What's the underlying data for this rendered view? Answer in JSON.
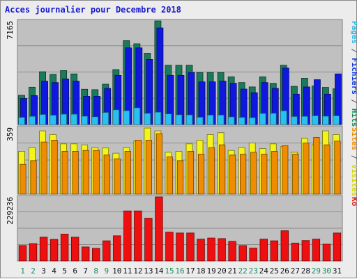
{
  "title": "Acces journalier pour Decembre 2018",
  "chart_data": {
    "type": "bar",
    "categories": [
      "1",
      "2",
      "3",
      "4",
      "5",
      "6",
      "7",
      "8",
      "9",
      "10",
      "11",
      "12",
      "13",
      "14",
      "15",
      "16",
      "17",
      "18",
      "19",
      "20",
      "21",
      "22",
      "23",
      "24",
      "25",
      "26",
      "27",
      "28",
      "29",
      "30",
      "31"
    ],
    "weekend_days": [
      "1",
      "2",
      "8",
      "9",
      "15",
      "16",
      "22",
      "23",
      "29",
      "30"
    ],
    "panels": [
      {
        "id": "hits-panel",
        "max_label": "7165",
        "ymax": 7165,
        "right_labels": [
          {
            "text": "Pages",
            "color": "#28b8e8"
          },
          {
            "text": " / ",
            "color": "#555555"
          },
          {
            "text": "Fichiers",
            "color": "#1038e0"
          },
          {
            "text": " / ",
            "color": "#555555"
          },
          {
            "text": "Hits",
            "color": "#1a8a5a"
          }
        ],
        "series": [
          {
            "name": "Hits",
            "color": "#1a7a5a",
            "values": [
              2020,
              2580,
              3650,
              3470,
              3730,
              3500,
              2440,
              2410,
              2790,
              3800,
              5800,
              5580,
              4930,
              7165,
              4100,
              4100,
              4100,
              3600,
              3600,
              3600,
              3300,
              2900,
              2600,
              3300,
              2850,
              4100,
              2640,
              3200,
              2670,
              2570,
              2470
            ]
          },
          {
            "name": "Fichiers",
            "color": "#1018e0",
            "values": [
              1800,
              2000,
              3000,
              2900,
              3150,
              3000,
              1950,
              1950,
              2500,
              3400,
              5300,
              5300,
              4500,
              6680,
              3400,
              3400,
              3600,
              2950,
              2950,
              3000,
              2850,
              2450,
              2200,
              2900,
              2500,
              3900,
              2100,
              2600,
              3100,
              2100,
              3500
            ]
          },
          {
            "name": "Pages",
            "color": "#28c0f0",
            "values": [
              500,
              570,
              700,
              650,
              720,
              720,
              580,
              540,
              840,
              1020,
              960,
              1160,
              780,
              860,
              740,
              680,
              670,
              510,
              660,
              660,
              530,
              500,
              480,
              770,
              780,
              950,
              560,
              570,
              610,
              580,
              610
            ]
          }
        ]
      },
      {
        "id": "visits-panel",
        "max_label": "359",
        "ymax": 359,
        "right_labels": [
          {
            "text": "Sites",
            "color": "#f08c00"
          },
          {
            "text": " / ",
            "color": "#555555"
          },
          {
            "text": "Visites",
            "color": "#d8d800"
          }
        ],
        "series": [
          {
            "name": "Visites",
            "color": "#f4f41a",
            "values": [
              230,
              250,
              340,
              320,
              270,
              270,
              265,
              250,
              248,
              220,
              250,
              285,
              355,
              340,
              225,
              230,
              270,
              290,
              320,
              330,
              235,
              250,
              275,
              245,
              270,
              255,
              225,
              300,
              265,
              340,
              320
            ]
          },
          {
            "name": "Sites",
            "color": "#f08c00",
            "values": [
              160,
              180,
              280,
              290,
              230,
              230,
              235,
              235,
              210,
              190,
              230,
              290,
              290,
              325,
              200,
              180,
              230,
              215,
              250,
              265,
              210,
              215,
              225,
              215,
              230,
              260,
              215,
              275,
              305,
              265,
              285
            ]
          }
        ]
      },
      {
        "id": "kb-panel",
        "max_label": "229236",
        "ymax": 229236,
        "right_labels": [
          {
            "text": "Ko",
            "color": "#e81010"
          }
        ],
        "series": [
          {
            "name": "Ko",
            "color": "#ee1010",
            "values": [
              55000,
              62000,
              85000,
              77000,
              96000,
              85000,
              50000,
              45000,
              72000,
              90000,
              179000,
              179000,
              153000,
              229236,
              103000,
              100000,
              100000,
              78000,
              82000,
              80000,
              70000,
              55000,
              46000,
              78000,
              72000,
              108000,
              64000,
              73000,
              78000,
              60000,
              100000
            ]
          }
        ]
      }
    ]
  }
}
